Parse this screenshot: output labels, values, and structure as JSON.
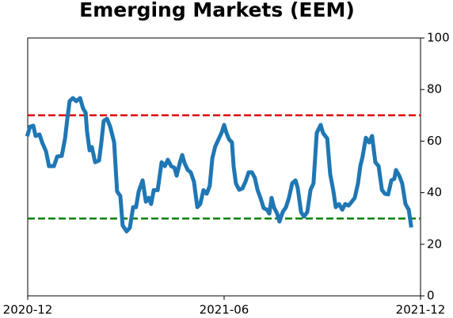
{
  "chart_data": {
    "type": "line",
    "title": "Emerging Markets (EEM)",
    "x": [
      0,
      0.07,
      0.17,
      0.24,
      0.36,
      0.44,
      0.56,
      0.65,
      0.8,
      0.9,
      1.04,
      1.14,
      1.21,
      1.28,
      1.38,
      1.48,
      1.6,
      1.69,
      1.77,
      1.81,
      1.89,
      1.96,
      2.06,
      2.18,
      2.25,
      2.32,
      2.42,
      2.52,
      2.64,
      2.73,
      2.83,
      2.9,
      3.02,
      3.12,
      3.22,
      3.31,
      3.39,
      3.51,
      3.61,
      3.7,
      3.77,
      3.85,
      3.97,
      4.09,
      4.19,
      4.28,
      4.38,
      4.48,
      4.55,
      4.65,
      4.72,
      4.79,
      4.89,
      4.98,
      5.08,
      5.18,
      5.27,
      5.37,
      5.47,
      5.56,
      5.64,
      5.73,
      5.83,
      5.93,
      6,
      6.07,
      6.15,
      6.24,
      6.29,
      6.36,
      6.46,
      6.56,
      6.65,
      6.75,
      6.85,
      6.94,
      7.02,
      7.11,
      7.21,
      7.31,
      7.38,
      7.45,
      7.52,
      7.62,
      7.69,
      7.79,
      7.89,
      7.98,
      8.08,
      8.18,
      8.25,
      8.35,
      8.44,
      8.54,
      8.64,
      8.73,
      8.83,
      8.95,
      9.02,
      9.15,
      9.24,
      9.34,
      9.41,
      9.51,
      9.61,
      9.7,
      9.8,
      9.9,
      9.99,
      10.09,
      10.16,
      10.23,
      10.33,
      10.43,
      10.52,
      10.62,
      10.72,
      10.82,
      10.91,
      11.01,
      11.11,
      11.2,
      11.25,
      11.35,
      11.44,
      11.54,
      11.64,
      11.71
    ],
    "series": [
      {
        "color": "#1f77b4",
        "values": [
          62.6,
          65.6,
          66,
          62,
          62.6,
          59.5,
          56,
          50.3,
          50.3,
          54,
          54.3,
          61,
          68.7,
          75.5,
          76.7,
          75.5,
          76.7,
          72.7,
          71,
          64,
          56.4,
          57.7,
          51.8,
          52.5,
          59.5,
          67.8,
          68.7,
          65.6,
          59.5,
          40.5,
          38.7,
          27.3,
          25,
          26.4,
          34.4,
          34.4,
          40.5,
          44.8,
          36.5,
          38,
          35.6,
          41,
          41,
          51.8,
          50.3,
          52.8,
          50.3,
          49.7,
          46.6,
          51.8,
          54.6,
          51.5,
          48.8,
          47.9,
          44.2,
          34.4,
          35.6,
          41,
          39.6,
          42.6,
          53.4,
          58,
          60.7,
          63.5,
          66.3,
          63.2,
          60.7,
          59.5,
          50.3,
          43.6,
          41.1,
          41.7,
          44.2,
          47.9,
          47.9,
          45.7,
          41.1,
          38,
          34,
          33.4,
          31.9,
          38,
          34.4,
          31.9,
          28.8,
          32.5,
          34.4,
          38,
          43.6,
          44.8,
          41.7,
          32.5,
          30.7,
          32.5,
          41.1,
          43.6,
          63.2,
          66.3,
          63.2,
          61,
          47.2,
          40.5,
          34.4,
          35.6,
          33.4,
          35.6,
          35,
          36.5,
          38,
          43.6,
          50.3,
          54,
          61.3,
          59.5,
          62,
          51.8,
          50.3,
          41.1,
          39.6,
          39.3,
          44.8,
          45.4,
          48.8,
          46.6,
          43.6,
          35.6,
          33.4,
          27.3
        ]
      }
    ],
    "hlines": [
      {
        "value": 70,
        "color": "#e00000"
      },
      {
        "value": 30,
        "color": "#008000"
      }
    ],
    "xlim": [
      0,
      12
    ],
    "xticks": [
      {
        "value": 0,
        "label": "2020-12"
      },
      {
        "value": 6,
        "label": "2021-06"
      },
      {
        "value": 12,
        "label": "2021-12"
      }
    ],
    "ylim": [
      0,
      100
    ],
    "yticks": [
      0,
      20,
      40,
      60,
      80,
      100
    ],
    "y_axis_side": "right"
  }
}
